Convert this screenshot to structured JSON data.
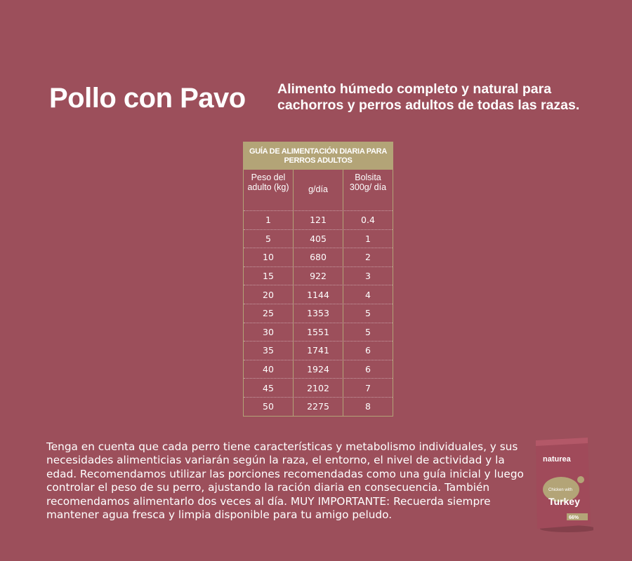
{
  "title": "Pollo con Pavo",
  "subtitle": "Alimento húmedo completo y natural para cachorros y perros adultos de todas las razas.",
  "table": {
    "header": "GUÍA DE ALIMENTACIÓN DIARIA PARA PERROS ADULTOS",
    "columns": [
      "Peso del adulto (kg)",
      "g/día",
      "Bolsita 300g/ día"
    ],
    "rows": [
      [
        "1",
        "121",
        "0.4"
      ],
      [
        "5",
        "405",
        "1"
      ],
      [
        "10",
        "680",
        "2"
      ],
      [
        "15",
        "922",
        "3"
      ],
      [
        "20",
        "1144",
        "4"
      ],
      [
        "25",
        "1353",
        "5"
      ],
      [
        "30",
        "1551",
        "5"
      ],
      [
        "35",
        "1741",
        "6"
      ],
      [
        "40",
        "1924",
        "6"
      ],
      [
        "45",
        "2102",
        "7"
      ],
      [
        "50",
        "2275",
        "8"
      ]
    ]
  },
  "paragraph": "Tenga en cuenta que cada perro tiene características y metabolismo individuales, y sus necesidades alimenticias variarán según la raza, el entorno, el nivel de actividad y la edad. Recomendamos utilizar las porciones recomendadas como una guía inicial y luego controlar el peso de su perro, ajustando la ración diaria en consecuencia. También recomendamos alimentarlo dos veces al día. MUY IMPORTANTE: Recuerda siempre mantener agua fresca y limpia disponible para tu amigo peludo.",
  "product": {
    "brand": "naturea",
    "line1": "Chicken with",
    "line2": "Turkey",
    "badge": "66%"
  },
  "colors": {
    "background": "#9c4f5b",
    "accent": "#b3a477"
  }
}
